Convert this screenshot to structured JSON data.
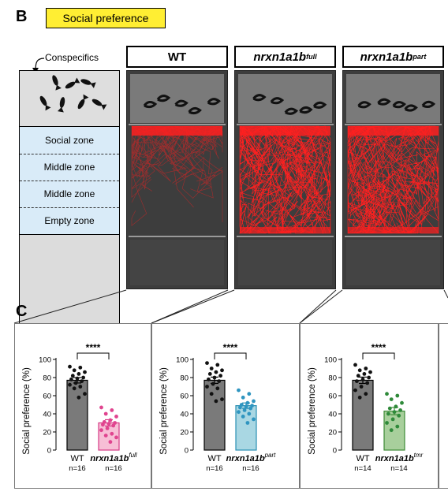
{
  "panel_b": {
    "letter": "B",
    "title": "Social preference",
    "conspecifics_label": "Conspecifics",
    "zones": [
      "Social zone",
      "Middle zone",
      "Middle zone",
      "Empty zone"
    ],
    "genotypes": [
      {
        "base": "nrxn1a1b",
        "sup": "full"
      },
      {
        "base": "nrxn1a1b",
        "sup": "part"
      }
    ],
    "wt_label": "WT",
    "track_color": "#ff2020"
  },
  "panel_c": {
    "letter": "C"
  },
  "chart_data": [
    {
      "type": "bar",
      "categories": [
        "WT",
        "nrxn1a1b"
      ],
      "category_sup": [
        "",
        "full"
      ],
      "n_labels": [
        "n=16",
        "n=16"
      ],
      "means": [
        77,
        30
      ],
      "sems": [
        3.0,
        3.5
      ],
      "points": [
        [
          92,
          91,
          88,
          86,
          84,
          82,
          80,
          79,
          78,
          76,
          74,
          72,
          70,
          68,
          62,
          58
        ],
        [
          47,
          44,
          40,
          37,
          33,
          31,
          30,
          29,
          28,
          27,
          24,
          22,
          18,
          16,
          14,
          9
        ]
      ],
      "bar_colors": [
        "#7a7a7a",
        "#f7bfd6"
      ],
      "edge_colors": [
        "#000000",
        "#d63b86"
      ],
      "point_colors": [
        "#111111",
        "#e0448f"
      ],
      "ylabel": "Social preference (%)",
      "ylim": [
        0,
        100
      ],
      "yticks": [
        0,
        20,
        40,
        60,
        80,
        100
      ],
      "significance": "****"
    },
    {
      "type": "bar",
      "categories": [
        "WT",
        "nrxn1a1b"
      ],
      "category_sup": [
        "",
        "part"
      ],
      "n_labels": [
        "n=16",
        "n=16"
      ],
      "means": [
        77,
        49
      ],
      "sems": [
        3.5,
        3.0
      ],
      "points": [
        [
          96,
          94,
          90,
          88,
          86,
          84,
          82,
          80,
          78,
          76,
          73,
          70,
          68,
          62,
          56,
          54
        ],
        [
          66,
          62,
          58,
          54,
          52,
          50,
          49,
          48,
          47,
          46,
          44,
          42,
          40,
          37,
          34,
          30
        ]
      ],
      "bar_colors": [
        "#7a7a7a",
        "#a9d7e3"
      ],
      "edge_colors": [
        "#000000",
        "#2a8fb3"
      ],
      "point_colors": [
        "#111111",
        "#2f95c0"
      ],
      "ylabel": "Social preference (%)",
      "ylim": [
        0,
        100
      ],
      "yticks": [
        0,
        20,
        40,
        60,
        80,
        100
      ],
      "significance": "****"
    },
    {
      "type": "bar",
      "categories": [
        "WT",
        "nrxn1a1b"
      ],
      "category_sup": [
        "",
        "tmr"
      ],
      "n_labels": [
        "n=14",
        "n=14"
      ],
      "means": [
        77,
        43
      ],
      "sems": [
        3.5,
        4.0
      ],
      "points": [
        [
          94,
          90,
          88,
          86,
          84,
          82,
          80,
          78,
          76,
          74,
          70,
          66,
          62,
          58
        ],
        [
          62,
          60,
          56,
          52,
          48,
          46,
          44,
          42,
          40,
          38,
          34,
          30,
          26,
          22
        ]
      ],
      "bar_colors": [
        "#7a7a7a",
        "#a8cf9c"
      ],
      "edge_colors": [
        "#000000",
        "#3d8a36"
      ],
      "point_colors": [
        "#111111",
        "#2f8a3a"
      ],
      "ylabel": "Social preference (%)",
      "ylim": [
        0,
        100
      ],
      "yticks": [
        0,
        20,
        40,
        60,
        80,
        100
      ],
      "significance": "****"
    }
  ]
}
